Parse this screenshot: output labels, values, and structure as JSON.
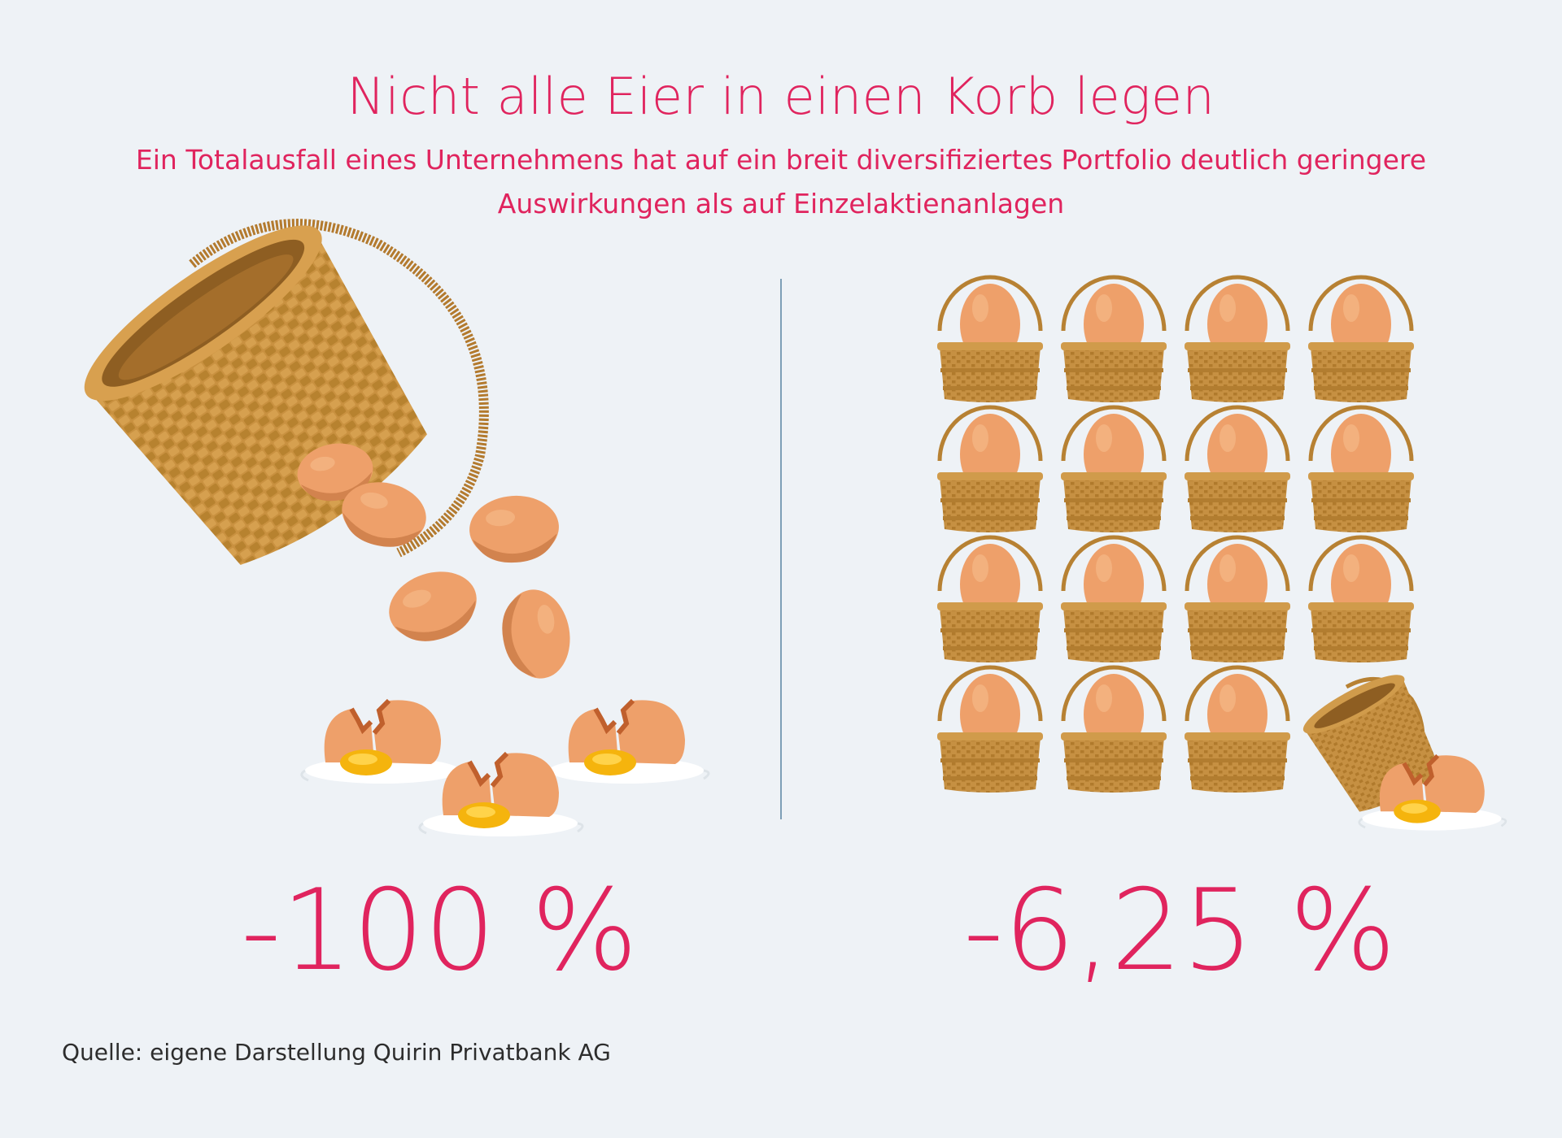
{
  "header": {
    "title": "Nicht alle Eier in einen Korb legen",
    "subtitle": "Ein Totalausfall eines Unternehmens hat auf ein breit diversifiziertes Portfolio deutlich geringere Auswirkungen als auf Einzelaktienanlagen"
  },
  "single_basket": {
    "value": "-100 %",
    "icons": [
      "tipped-basket-icon",
      "falling-egg-icon",
      "broken-egg-icon"
    ]
  },
  "diversified": {
    "value": "-6,25 %",
    "basket_grid": {
      "rows": 4,
      "columns": 4,
      "intact_baskets": 15,
      "failed_baskets": 1
    },
    "icons": [
      "egg-basket-icon",
      "tipped-basket-icon",
      "broken-egg-icon"
    ]
  },
  "footer": {
    "source": "Quelle: eigene Darstellung Quirin Privatbank AG"
  },
  "colors": {
    "accent": "#e0245e",
    "background": "#eef2f6",
    "basket": "#c99140",
    "egg": "#f0a56f",
    "yolk": "#f5b40d"
  }
}
